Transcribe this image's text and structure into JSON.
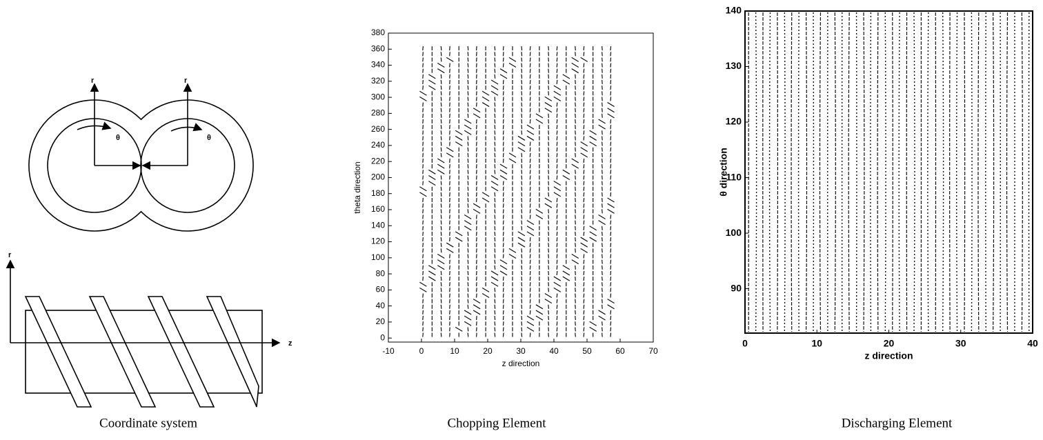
{
  "coordinate_system": {
    "caption": "Coordinate system",
    "labels": {
      "r_left": "r",
      "r_right": "r",
      "theta_left": "θ",
      "theta_right": "θ",
      "r_screw": "r",
      "z_screw": "z"
    }
  },
  "chopping_element": {
    "caption": "Chopping Element",
    "x_label": "z direction",
    "y_label": "theta direction",
    "xlim": [
      -10,
      70
    ],
    "xticks": [
      -10,
      0,
      10,
      20,
      30,
      40,
      50,
      60,
      70
    ],
    "ylim": [
      -5,
      380
    ],
    "yticks": [
      0,
      20,
      40,
      60,
      80,
      100,
      120,
      140,
      160,
      180,
      200,
      220,
      240,
      260,
      280,
      300,
      320,
      340,
      360,
      380
    ]
  },
  "discharging_element": {
    "caption": "Discharging Element",
    "x_label": "z direction",
    "y_label": "θ direction",
    "xlim": [
      0,
      40
    ],
    "xticks": [
      0,
      10,
      20,
      30,
      40
    ],
    "ylim": [
      82,
      140
    ],
    "yticks": [
      90,
      100,
      110,
      120,
      130,
      140
    ]
  }
}
